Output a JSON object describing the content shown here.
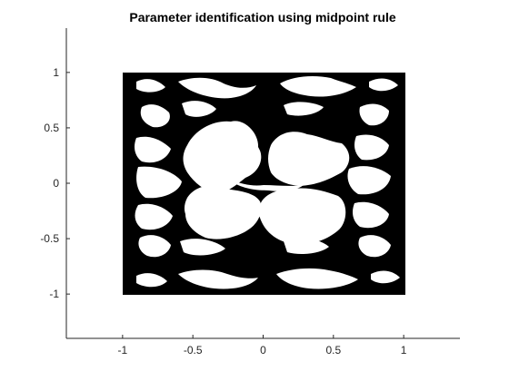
{
  "chart_data": {
    "type": "image",
    "title": "Parameter identification using midpoint rule",
    "xlim": [
      -1.4,
      1.4
    ],
    "ylim": [
      -1.4,
      1.4
    ],
    "xticks": [
      -1,
      -0.5,
      0,
      0.5,
      1
    ],
    "xtick_labels": [
      "-1",
      "-0.5",
      "0",
      "0.5",
      "1"
    ],
    "yticks": [
      1,
      0.5,
      0,
      -0.5,
      -1
    ],
    "ytick_labels": [
      "1",
      "0.5",
      "0",
      "-0.5",
      "-1"
    ],
    "grid": false,
    "domain": {
      "x": [
        -1,
        1
      ],
      "y": [
        -1,
        1
      ]
    },
    "colors": {
      "material": "#000000",
      "void": "#ffffff",
      "axis": "#262626"
    }
  }
}
